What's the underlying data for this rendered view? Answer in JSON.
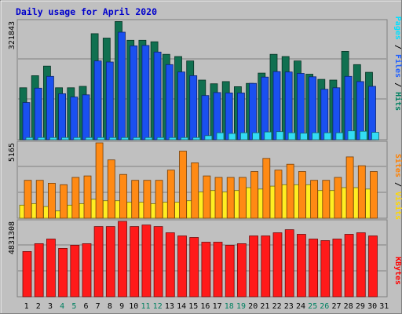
{
  "chart_data": {
    "type": "bar",
    "title": "Daily usage for April 2020",
    "categories": [
      "1",
      "2",
      "3",
      "4",
      "5",
      "6",
      "7",
      "8",
      "9",
      "10",
      "11",
      "12",
      "13",
      "14",
      "15",
      "16",
      "17",
      "18",
      "19",
      "20",
      "21",
      "22",
      "23",
      "24",
      "25",
      "26",
      "27",
      "28",
      "29",
      "30",
      "31"
    ],
    "weekend_days": [
      "4",
      "5",
      "11",
      "12",
      "18",
      "19",
      "25",
      "26"
    ],
    "panels": [
      {
        "id": "hits-files-pages",
        "max_label": "321843",
        "ylim": [
          0,
          321843
        ],
        "legend": [
          {
            "label": "Pages",
            "color": "#00e0ff"
          },
          {
            "label": " / ",
            "color": "#000000"
          },
          {
            "label": "Files",
            "color": "#2060ff"
          },
          {
            "label": " / ",
            "color": "#000000"
          },
          {
            "label": "Hits",
            "color": "#008060"
          }
        ],
        "series": [
          {
            "name": "Hits",
            "color": "#107050",
            "values": [
              141000,
              174000,
              200000,
              141000,
              141000,
              145000,
              288000,
              276000,
              321000,
              270000,
              270000,
              266000,
              232000,
              226000,
              214000,
              162000,
              152000,
              158000,
              144000,
              153000,
              181000,
              232000,
              226000,
              214000,
              178000,
              164000,
              162000,
              240000,
              204000,
              183000,
              0
            ]
          },
          {
            "name": "Files",
            "color": "#1a50f0",
            "values": [
              101000,
              140000,
              172000,
              125000,
              116000,
              122000,
              214000,
              211000,
              292000,
              255000,
              256000,
              238000,
              204000,
              184000,
              174000,
              120000,
              128000,
              127000,
              127000,
              153000,
              170000,
              185000,
              184000,
              180000,
              171000,
              137000,
              141000,
              172000,
              158000,
              145000,
              0
            ]
          },
          {
            "name": "Pages",
            "color": "#33dcf4",
            "values": [
              6000,
              6000,
              6000,
              6000,
              6000,
              6000,
              6000,
              6000,
              6000,
              6000,
              6000,
              6000,
              6000,
              6000,
              6000,
              11000,
              19000,
              17000,
              19000,
              19000,
              21000,
              22000,
              19000,
              18000,
              19000,
              19000,
              19000,
              24000,
              23000,
              20000,
              0
            ]
          }
        ]
      },
      {
        "id": "visits-sites",
        "max_label": "5165",
        "ylim": [
          0,
          5165
        ],
        "legend": [
          {
            "label": "Sites",
            "color": "#ff8000"
          },
          {
            "label": " / ",
            "color": "#000000"
          },
          {
            "label": "Visits",
            "color": "#ffd800"
          }
        ],
        "series": [
          {
            "name": "Visits",
            "color": "#ffee22",
            "values": [
              900,
              1000,
              800,
              500,
              900,
              1000,
              1300,
              1200,
              1200,
              1100,
              1100,
              1000,
              1100,
              1100,
              1200,
              1800,
              1900,
              1800,
              1900,
              2100,
              2000,
              2200,
              2300,
              2300,
              2300,
              1900,
              1900,
              2100,
              2100,
              2000,
              0
            ]
          },
          {
            "name": "Sites",
            "color": "#ff8a14",
            "values": [
              2600,
              2600,
              2400,
              2300,
              2800,
              2900,
              5165,
              4000,
              3000,
              2600,
              2600,
              2600,
              3300,
              4600,
              3800,
              2900,
              2800,
              2800,
              2800,
              3200,
              4100,
              3300,
              3700,
              3200,
              2600,
              2600,
              2800,
              4200,
              3600,
              3200,
              0
            ]
          }
        ]
      },
      {
        "id": "kbytes",
        "max_label": "4831308",
        "ylim": [
          0,
          4831308
        ],
        "legend": [
          {
            "label": "KBytes",
            "color": "#ff0000"
          }
        ],
        "series": [
          {
            "name": "KBytes",
            "color": "#ff1a1a",
            "values": [
              2900000,
              3400000,
              3700000,
              3100000,
              3300000,
              3400000,
              4500000,
              4500000,
              4831308,
              4500000,
              4600000,
              4500000,
              4100000,
              3900000,
              3800000,
              3500000,
              3500000,
              3300000,
              3400000,
              3900000,
              3900000,
              4100000,
              4300000,
              4000000,
              3700000,
              3600000,
              3700000,
              4000000,
              4100000,
              3900000,
              0
            ]
          }
        ]
      }
    ]
  }
}
